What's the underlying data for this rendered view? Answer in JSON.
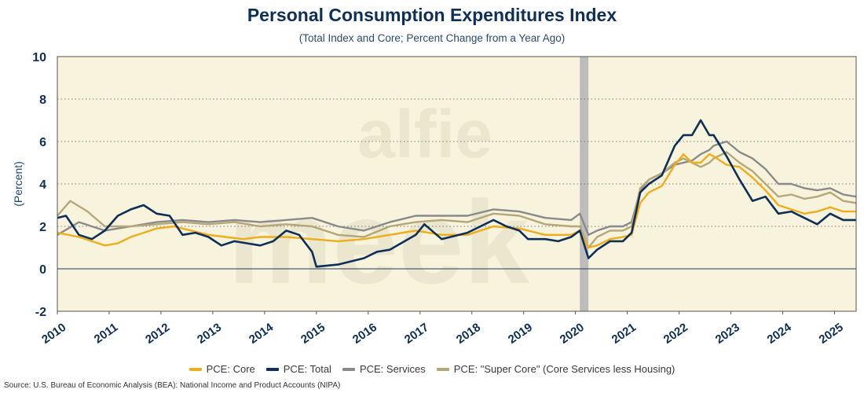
{
  "chart_data": {
    "type": "line",
    "title": "Personal Consumption Expenditures Index",
    "subtitle": "(Total Index and Core; Percent Change from a Year Ago)",
    "ylabel": "(Percent)",
    "xlabel": "",
    "ylim": [
      -2,
      10
    ],
    "yticks": [
      -2,
      0,
      2,
      4,
      6,
      8,
      10
    ],
    "xlim": [
      "2010-01",
      "2025-06"
    ],
    "xticks": [
      "2010",
      "2011",
      "2012",
      "2013",
      "2014",
      "2015",
      "2016",
      "2017",
      "2018",
      "2019",
      "2020",
      "2021",
      "2022",
      "2023",
      "2024",
      "2025"
    ],
    "grid": "horizontal dotted",
    "legend_position": "bottom",
    "recession_shading": [
      "2020-02",
      "2020-04"
    ],
    "watermark": "alfie meek",
    "source": "Source: U.S. Bureau of Economic Analysis (BEA): National Income and Product Accounts (NIPA)",
    "series": [
      {
        "name": "PCE: Core",
        "color": "#f0ad1a",
        "points": [
          [
            "2010-01",
            1.7
          ],
          [
            "2010-06",
            1.5
          ],
          [
            "2010-12",
            1.1
          ],
          [
            "2011-03",
            1.2
          ],
          [
            "2011-06",
            1.5
          ],
          [
            "2011-09",
            1.7
          ],
          [
            "2011-12",
            1.9
          ],
          [
            "2012-04",
            2.0
          ],
          [
            "2012-08",
            1.8
          ],
          [
            "2012-12",
            1.6
          ],
          [
            "2013-04",
            1.5
          ],
          [
            "2013-08",
            1.4
          ],
          [
            "2013-12",
            1.5
          ],
          [
            "2014-06",
            1.5
          ],
          [
            "2014-12",
            1.4
          ],
          [
            "2015-06",
            1.3
          ],
          [
            "2015-12",
            1.4
          ],
          [
            "2016-06",
            1.6
          ],
          [
            "2016-12",
            1.8
          ],
          [
            "2017-06",
            1.6
          ],
          [
            "2017-12",
            1.6
          ],
          [
            "2018-06",
            2.0
          ],
          [
            "2018-12",
            1.9
          ],
          [
            "2019-06",
            1.6
          ],
          [
            "2019-12",
            1.6
          ],
          [
            "2020-02",
            1.8
          ],
          [
            "2020-04",
            1.0
          ],
          [
            "2020-06",
            1.1
          ],
          [
            "2020-09",
            1.4
          ],
          [
            "2020-12",
            1.5
          ],
          [
            "2021-02",
            1.6
          ],
          [
            "2021-04",
            3.1
          ],
          [
            "2021-06",
            3.6
          ],
          [
            "2021-09",
            3.9
          ],
          [
            "2021-12",
            4.9
          ],
          [
            "2022-02",
            5.4
          ],
          [
            "2022-04",
            5.0
          ],
          [
            "2022-06",
            5.0
          ],
          [
            "2022-08",
            5.4
          ],
          [
            "2022-09",
            5.3
          ],
          [
            "2022-12",
            4.9
          ],
          [
            "2023-03",
            4.8
          ],
          [
            "2023-06",
            4.3
          ],
          [
            "2023-09",
            3.7
          ],
          [
            "2023-12",
            3.0
          ],
          [
            "2024-03",
            2.8
          ],
          [
            "2024-06",
            2.6
          ],
          [
            "2024-09",
            2.7
          ],
          [
            "2024-12",
            2.9
          ],
          [
            "2025-03",
            2.7
          ],
          [
            "2025-06",
            2.7
          ]
        ]
      },
      {
        "name": "PCE: Total",
        "color": "#0d2f5a",
        "points": [
          [
            "2010-01",
            2.4
          ],
          [
            "2010-03",
            2.5
          ],
          [
            "2010-06",
            1.6
          ],
          [
            "2010-09",
            1.4
          ],
          [
            "2010-12",
            1.8
          ],
          [
            "2011-03",
            2.5
          ],
          [
            "2011-06",
            2.8
          ],
          [
            "2011-09",
            3.0
          ],
          [
            "2011-12",
            2.6
          ],
          [
            "2012-03",
            2.5
          ],
          [
            "2012-06",
            1.6
          ],
          [
            "2012-09",
            1.7
          ],
          [
            "2012-12",
            1.5
          ],
          [
            "2013-03",
            1.1
          ],
          [
            "2013-06",
            1.3
          ],
          [
            "2013-09",
            1.2
          ],
          [
            "2013-12",
            1.1
          ],
          [
            "2014-03",
            1.3
          ],
          [
            "2014-06",
            1.8
          ],
          [
            "2014-09",
            1.6
          ],
          [
            "2014-12",
            0.8
          ],
          [
            "2015-01",
            0.1
          ],
          [
            "2015-06",
            0.2
          ],
          [
            "2015-12",
            0.5
          ],
          [
            "2016-03",
            0.8
          ],
          [
            "2016-06",
            0.9
          ],
          [
            "2016-12",
            1.6
          ],
          [
            "2017-02",
            2.1
          ],
          [
            "2017-06",
            1.4
          ],
          [
            "2017-12",
            1.7
          ],
          [
            "2018-03",
            2.0
          ],
          [
            "2018-06",
            2.3
          ],
          [
            "2018-09",
            2.0
          ],
          [
            "2018-12",
            1.8
          ],
          [
            "2019-02",
            1.4
          ],
          [
            "2019-06",
            1.4
          ],
          [
            "2019-09",
            1.3
          ],
          [
            "2019-12",
            1.5
          ],
          [
            "2020-02",
            1.8
          ],
          [
            "2020-04",
            0.5
          ],
          [
            "2020-06",
            0.9
          ],
          [
            "2020-09",
            1.3
          ],
          [
            "2020-12",
            1.3
          ],
          [
            "2021-02",
            1.7
          ],
          [
            "2021-04",
            3.6
          ],
          [
            "2021-06",
            4.0
          ],
          [
            "2021-09",
            4.4
          ],
          [
            "2021-12",
            5.8
          ],
          [
            "2022-02",
            6.3
          ],
          [
            "2022-04",
            6.3
          ],
          [
            "2022-06",
            7.0
          ],
          [
            "2022-08",
            6.3
          ],
          [
            "2022-09",
            6.3
          ],
          [
            "2022-12",
            5.3
          ],
          [
            "2023-03",
            4.2
          ],
          [
            "2023-06",
            3.2
          ],
          [
            "2023-09",
            3.4
          ],
          [
            "2023-12",
            2.6
          ],
          [
            "2024-03",
            2.7
          ],
          [
            "2024-06",
            2.4
          ],
          [
            "2024-09",
            2.1
          ],
          [
            "2024-12",
            2.6
          ],
          [
            "2025-03",
            2.3
          ],
          [
            "2025-06",
            2.3
          ]
        ]
      },
      {
        "name": "PCE: Services",
        "color": "#8a8a8a",
        "points": [
          [
            "2010-01",
            1.6
          ],
          [
            "2010-06",
            2.2
          ],
          [
            "2010-12",
            1.8
          ],
          [
            "2011-06",
            2.0
          ],
          [
            "2011-12",
            2.2
          ],
          [
            "2012-06",
            2.3
          ],
          [
            "2012-12",
            2.2
          ],
          [
            "2013-06",
            2.3
          ],
          [
            "2013-12",
            2.2
          ],
          [
            "2014-06",
            2.3
          ],
          [
            "2014-12",
            2.4
          ],
          [
            "2015-06",
            2.0
          ],
          [
            "2015-12",
            1.8
          ],
          [
            "2016-06",
            2.2
          ],
          [
            "2016-12",
            2.5
          ],
          [
            "2017-06",
            2.5
          ],
          [
            "2017-12",
            2.5
          ],
          [
            "2018-06",
            2.8
          ],
          [
            "2018-12",
            2.7
          ],
          [
            "2019-06",
            2.4
          ],
          [
            "2019-12",
            2.3
          ],
          [
            "2020-02",
            2.6
          ],
          [
            "2020-04",
            1.6
          ],
          [
            "2020-06",
            1.8
          ],
          [
            "2020-09",
            2.0
          ],
          [
            "2020-12",
            2.0
          ],
          [
            "2021-02",
            2.2
          ],
          [
            "2021-04",
            3.7
          ],
          [
            "2021-06",
            4.2
          ],
          [
            "2021-09",
            4.5
          ],
          [
            "2021-12",
            4.9
          ],
          [
            "2022-02",
            5.0
          ],
          [
            "2022-04",
            5.1
          ],
          [
            "2022-06",
            5.4
          ],
          [
            "2022-08",
            5.6
          ],
          [
            "2022-09",
            5.8
          ],
          [
            "2022-12",
            6.0
          ],
          [
            "2023-03",
            5.5
          ],
          [
            "2023-06",
            5.2
          ],
          [
            "2023-09",
            4.7
          ],
          [
            "2023-12",
            4.0
          ],
          [
            "2024-03",
            4.0
          ],
          [
            "2024-06",
            3.8
          ],
          [
            "2024-09",
            3.7
          ],
          [
            "2024-12",
            3.8
          ],
          [
            "2025-03",
            3.5
          ],
          [
            "2025-06",
            3.4
          ]
        ]
      },
      {
        "name": "PCE: \"Super Core\" (Core Services less Housing)",
        "color": "#b4a77a",
        "points": [
          [
            "2010-01",
            2.5
          ],
          [
            "2010-04",
            3.2
          ],
          [
            "2010-08",
            2.7
          ],
          [
            "2010-12",
            2.0
          ],
          [
            "2011-06",
            2.0
          ],
          [
            "2011-12",
            2.1
          ],
          [
            "2012-06",
            2.2
          ],
          [
            "2012-12",
            2.1
          ],
          [
            "2013-06",
            2.2
          ],
          [
            "2013-12",
            2.0
          ],
          [
            "2014-06",
            2.1
          ],
          [
            "2014-12",
            2.0
          ],
          [
            "2015-06",
            1.6
          ],
          [
            "2015-12",
            1.5
          ],
          [
            "2016-06",
            2.0
          ],
          [
            "2016-12",
            2.2
          ],
          [
            "2017-06",
            2.3
          ],
          [
            "2017-12",
            2.2
          ],
          [
            "2018-06",
            2.6
          ],
          [
            "2018-12",
            2.5
          ],
          [
            "2019-06",
            2.1
          ],
          [
            "2019-12",
            2.0
          ],
          [
            "2020-02",
            2.0
          ],
          [
            "2020-04",
            1.0
          ],
          [
            "2020-06",
            1.5
          ],
          [
            "2020-09",
            1.8
          ],
          [
            "2020-12",
            1.8
          ],
          [
            "2021-02",
            2.0
          ],
          [
            "2021-04",
            3.8
          ],
          [
            "2021-06",
            4.2
          ],
          [
            "2021-09",
            4.5
          ],
          [
            "2021-12",
            5.0
          ],
          [
            "2022-02",
            5.2
          ],
          [
            "2022-04",
            5.0
          ],
          [
            "2022-06",
            4.8
          ],
          [
            "2022-08",
            5.0
          ],
          [
            "2022-09",
            5.2
          ],
          [
            "2022-12",
            5.5
          ],
          [
            "2023-03",
            5.0
          ],
          [
            "2023-06",
            4.6
          ],
          [
            "2023-09",
            4.0
          ],
          [
            "2023-12",
            3.4
          ],
          [
            "2024-03",
            3.5
          ],
          [
            "2024-06",
            3.3
          ],
          [
            "2024-09",
            3.4
          ],
          [
            "2024-12",
            3.6
          ],
          [
            "2025-03",
            3.2
          ],
          [
            "2025-06",
            3.1
          ]
        ]
      }
    ]
  }
}
